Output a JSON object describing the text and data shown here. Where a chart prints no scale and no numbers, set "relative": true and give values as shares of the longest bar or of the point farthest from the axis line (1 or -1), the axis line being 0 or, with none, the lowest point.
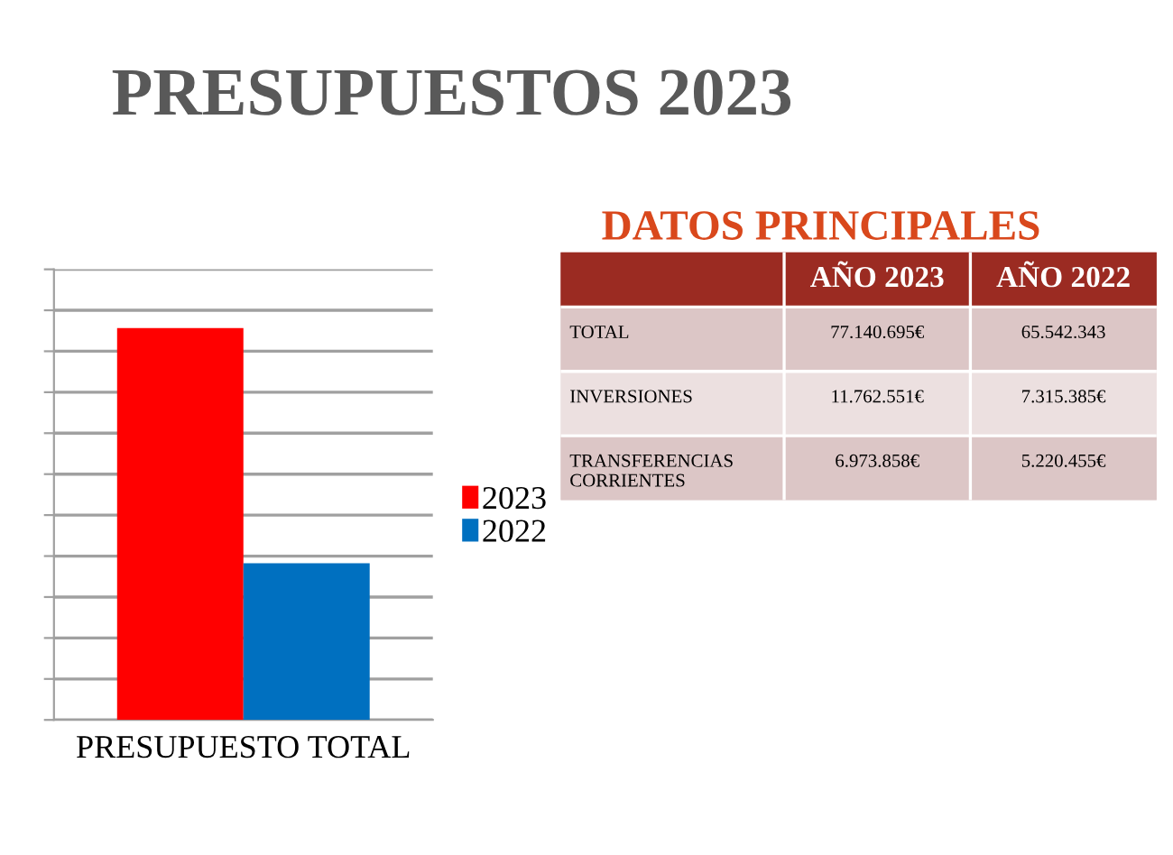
{
  "chart_data": [
    {
      "type": "bar",
      "title": "PRESUPUESTOS 2023",
      "categories": [
        "PRESUPUESTO TOTAL"
      ],
      "relative": true,
      "grid": "y",
      "legend": "right",
      "series": [
        {
          "name": "2023",
          "color": "#ff0000",
          "values": [
            1
          ]
        },
        {
          "name": "2022",
          "color": "#0070c0",
          "values": [
            0.4
          ]
        }
      ]
    },
    {
      "type": "other",
      "title": "DATOS PRINCIPALES",
      "categories": [
        "TOTAL",
        "INVERSIONES",
        "TRANSFERENCIAS\nCORRIENTES"
      ],
      "series": [
        {
          "name": "AÑO 2023",
          "colors": [
            "#dcc6c6",
            "#ece0e0",
            "#dcc6c6"
          ],
          "values": [
            77140695,
            11762551,
            6973858
          ],
          "value_labels": [
            "77.140.695€",
            "11.762.551€",
            "6.973.858€"
          ]
        },
        {
          "name": "AÑO 2022",
          "colors": [
            "#dcc6c6",
            "#ece0e0",
            "#dcc6c6"
          ],
          "values": [
            65542343,
            7315385,
            5220455
          ],
          "value_labels": [
            "65.542.343",
            "7.315.385€",
            "5.220.455€"
          ]
        }
      ]
    }
  ]
}
